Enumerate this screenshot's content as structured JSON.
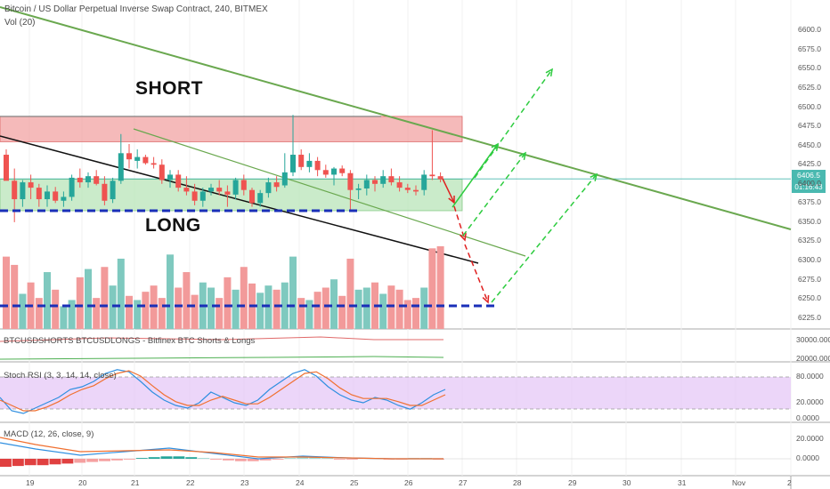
{
  "header": {
    "title": "Bitcoin / US Dollar Perpetual Inverse Swap Contract, 240, BITMEX",
    "volume_label": "Vol (20)"
  },
  "annotations": {
    "short": "SHORT",
    "long": "LONG"
  },
  "last_price": {
    "value": "6406.5",
    "timer": "01:16:43"
  },
  "panels": {
    "shorts_longs": "BTCUSDSHORTS BTCUSDLONGS - Bitfinex BTC Shorts & Longs",
    "stoch": "Stoch RSI (3, 3, 14, 14, close)",
    "macd": "MACD (12, 26, close, 9)"
  },
  "colors": {
    "up": "#7fc9bf",
    "down": "#f29a9a",
    "short_zone": "#f2a3a3",
    "long_zone": "#bde6bd",
    "trend": "#6aa84f",
    "stoch_band": "#e6c8f7"
  },
  "chart_data": {
    "type": "candlestick",
    "price_axis": {
      "ticks": [
        "6600.0",
        "6575.0",
        "6550.0",
        "6525.0",
        "6500.0",
        "6475.0",
        "6450.0",
        "6425.0",
        "6400.0",
        "6375.0",
        "6350.0",
        "6325.0",
        "6300.0",
        "6275.0",
        "6250.0",
        "6225.0"
      ],
      "ylim": [
        6220,
        6612
      ]
    },
    "x_axis": {
      "ticks": [
        "19",
        "20",
        "21",
        "22",
        "23",
        "24",
        "25",
        "26",
        "27",
        "28",
        "29",
        "30",
        "31",
        "Nov",
        "2"
      ]
    },
    "short_zone": [
      6455,
      6488
    ],
    "long_zone": [
      6365,
      6406
    ],
    "dashed_support": 6365,
    "volume_support": 6243,
    "candles": [
      [
        6438,
        6445,
        6405,
        6404
      ],
      [
        6404,
        6420,
        6350,
        6380
      ],
      [
        6380,
        6405,
        6370,
        6402
      ],
      [
        6402,
        6412,
        6380,
        6395
      ],
      [
        6395,
        6400,
        6370,
        6380
      ],
      [
        6380,
        6398,
        6370,
        6390
      ],
      [
        6390,
        6396,
        6375,
        6378
      ],
      [
        6378,
        6390,
        6370,
        6383
      ],
      [
        6383,
        6412,
        6378,
        6408
      ],
      [
        6408,
        6420,
        6395,
        6402
      ],
      [
        6402,
        6415,
        6395,
        6410
      ],
      [
        6410,
        6418,
        6398,
        6400
      ],
      [
        6400,
        6410,
        6372,
        6378
      ],
      [
        6380,
        6408,
        6375,
        6404
      ],
      [
        6404,
        6465,
        6400,
        6440
      ],
      [
        6440,
        6452,
        6420,
        6432
      ],
      [
        6430,
        6445,
        6420,
        6435
      ],
      [
        6435,
        6438,
        6425,
        6427
      ],
      [
        6427,
        6435,
        6420,
        6425
      ],
      [
        6425,
        6432,
        6400,
        6405
      ],
      [
        6405,
        6418,
        6395,
        6412
      ],
      [
        6412,
        6418,
        6390,
        6395
      ],
      [
        6395,
        6410,
        6385,
        6390
      ],
      [
        6390,
        6400,
        6372,
        6378
      ],
      [
        6378,
        6395,
        6370,
        6390
      ],
      [
        6390,
        6400,
        6385,
        6395
      ],
      [
        6395,
        6405,
        6385,
        6390
      ],
      [
        6390,
        6398,
        6370,
        6386
      ],
      [
        6386,
        6408,
        6380,
        6405
      ],
      [
        6405,
        6412,
        6385,
        6392
      ],
      [
        6392,
        6395,
        6370,
        6375
      ],
      [
        6375,
        6392,
        6370,
        6388
      ],
      [
        6388,
        6408,
        6382,
        6402
      ],
      [
        6402,
        6410,
        6390,
        6396
      ],
      [
        6398,
        6440,
        6395,
        6415
      ],
      [
        6415,
        6490,
        6410,
        6438
      ],
      [
        6438,
        6445,
        6418,
        6422
      ],
      [
        6422,
        6440,
        6415,
        6430
      ],
      [
        6430,
        6435,
        6410,
        6418
      ],
      [
        6418,
        6425,
        6408,
        6412
      ],
      [
        6412,
        6422,
        6398,
        6420
      ],
      [
        6420,
        6424,
        6410,
        6414
      ],
      [
        6414,
        6418,
        6365,
        6392
      ],
      [
        6392,
        6400,
        6380,
        6394
      ],
      [
        6394,
        6412,
        6385,
        6405
      ],
      [
        6405,
        6410,
        6390,
        6400
      ],
      [
        6400,
        6418,
        6395,
        6410
      ],
      [
        6410,
        6420,
        6398,
        6402
      ],
      [
        6402,
        6410,
        6390,
        6395
      ],
      [
        6395,
        6400,
        6388,
        6392
      ],
      [
        6392,
        6398,
        6385,
        6390
      ],
      [
        6392,
        6418,
        6385,
        6412
      ],
      [
        6412,
        6470,
        6405,
        6410
      ],
      [
        6410,
        6415,
        6402,
        6406
      ]
    ],
    "volumes": [
      70,
      62,
      34,
      45,
      30,
      55,
      38,
      22,
      28,
      50,
      58,
      30,
      60,
      42,
      68,
      32,
      28,
      36,
      42,
      30,
      72,
      40,
      55,
      33,
      45,
      40,
      30,
      50,
      38,
      60,
      44,
      35,
      42,
      38,
      45,
      70,
      30,
      28,
      36,
      40,
      48,
      32,
      68,
      38,
      40,
      45,
      34,
      42,
      38,
      28,
      30,
      40,
      78,
      80
    ],
    "stoch_k": [
      40,
      15,
      10,
      20,
      30,
      40,
      55,
      60,
      70,
      85,
      92,
      88,
      70,
      50,
      35,
      25,
      20,
      30,
      50,
      40,
      30,
      25,
      35,
      55,
      70,
      85,
      92,
      80,
      60,
      45,
      35,
      30,
      40,
      35,
      25,
      18,
      30,
      45,
      55
    ],
    "stoch_d": [
      35,
      25,
      15,
      15,
      22,
      32,
      45,
      55,
      62,
      75,
      85,
      90,
      80,
      62,
      45,
      32,
      25,
      25,
      35,
      42,
      35,
      28,
      28,
      40,
      55,
      70,
      85,
      88,
      75,
      58,
      45,
      38,
      38,
      38,
      32,
      25,
      25,
      35,
      45
    ],
    "shorts_longs_ticks": [
      "30000.0000",
      "20000.0000"
    ],
    "stoch_ticks": [
      "80.0000",
      "20.0000",
      "0.0000"
    ],
    "macd_ticks": [
      "20.0000",
      "0.0000"
    ]
  }
}
